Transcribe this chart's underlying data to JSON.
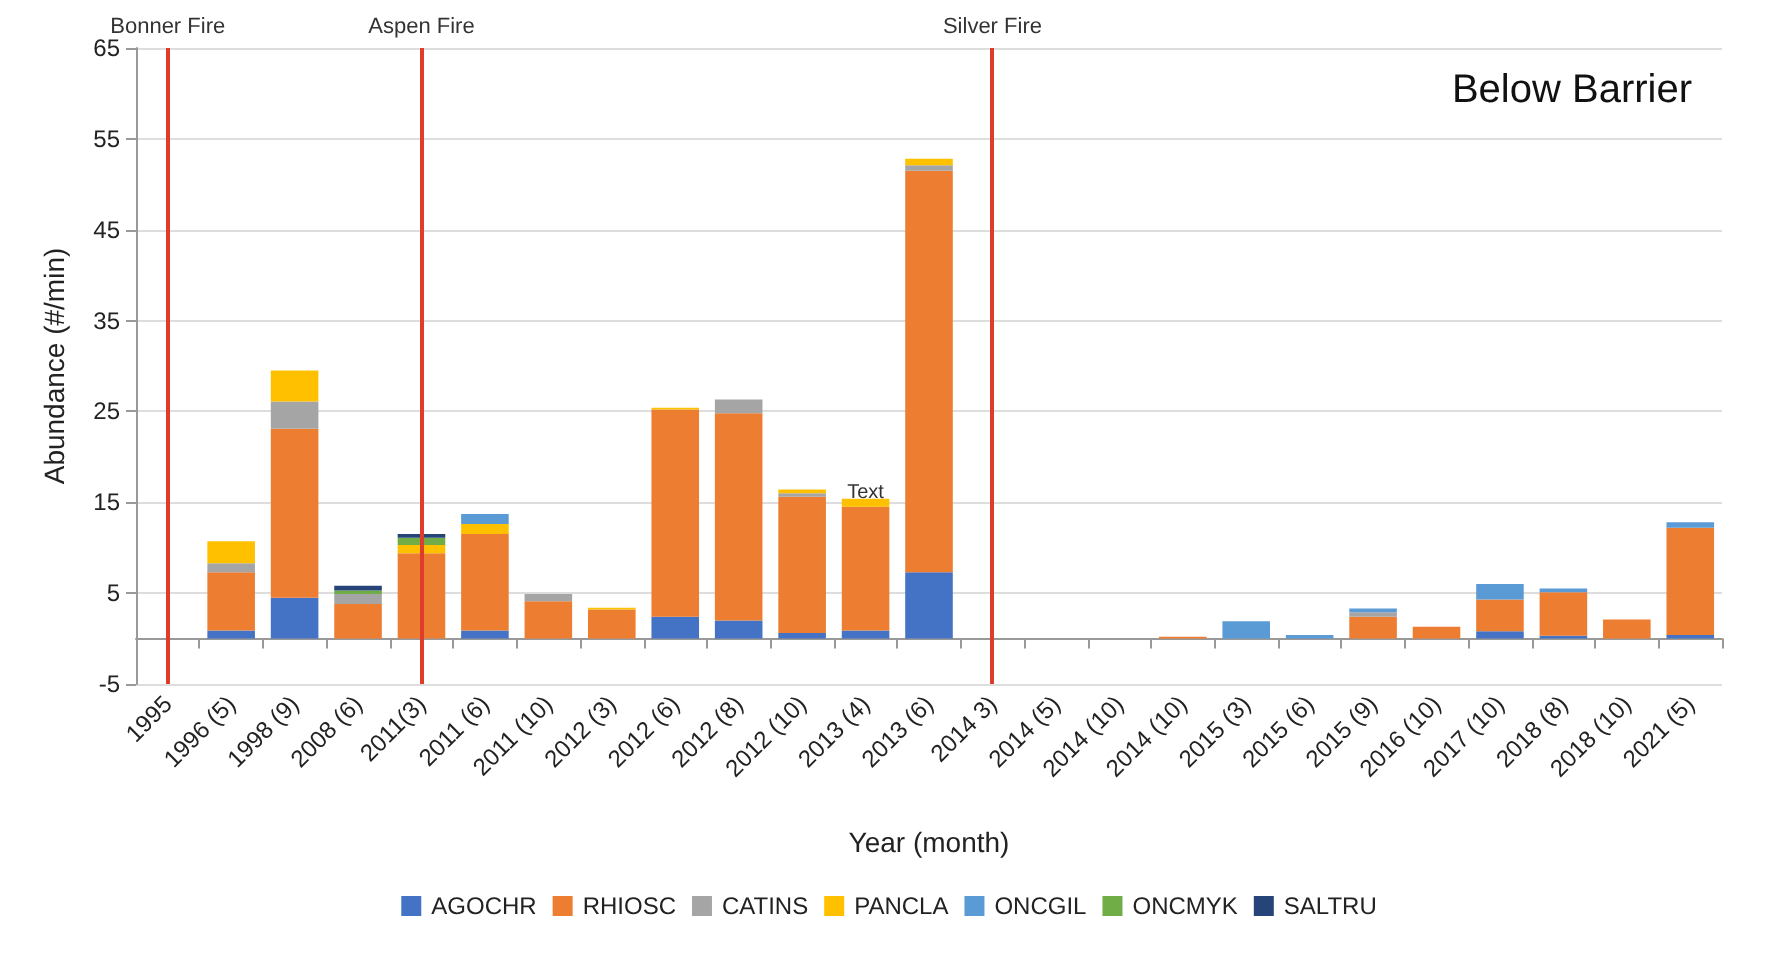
{
  "chart_data": {
    "type": "bar",
    "title": "Below Barrier",
    "xlabel": "Year (month)",
    "ylabel": "Abundance (#/min)",
    "stacked": true,
    "grid": "y",
    "legend": "bottom",
    "categories": [
      "1995",
      "1996 (5)",
      "1998 (9)",
      "2008 (6)",
      "2011(3)",
      "2011 (6)",
      "2011 (10)",
      "2012 (3)",
      "2012 (6)",
      "2012 (8)",
      "2012 (10)",
      "2013 (4)",
      "2013 (6)",
      "2014 3)",
      "2014 (5)",
      "2014 (10)",
      "2014 (10)",
      "2015 (3)",
      "2015 (6)",
      "2015 (9)",
      "2016 (10)",
      "2017 (10)",
      "2018 (8)",
      "2018 (10)",
      "2021 (5)"
    ],
    "series": [
      {
        "name": "AGOCHR",
        "color": "#4472c4",
        "values": [
          null,
          0.9,
          4.5,
          null,
          null,
          0.9,
          null,
          null,
          2.4,
          2.0,
          0.6,
          0.9,
          7.3,
          null,
          null,
          null,
          null,
          null,
          null,
          null,
          null,
          0.8,
          0.3,
          null,
          0.4
        ]
      },
      {
        "name": "RHIOSC",
        "color": "#ed7d31",
        "values": [
          null,
          6.4,
          18.6,
          3.8,
          9.4,
          10.6,
          4.1,
          3.2,
          22.8,
          22.8,
          15.0,
          13.6,
          44.2,
          null,
          null,
          null,
          0.2,
          null,
          null,
          2.4,
          1.3,
          3.5,
          4.8,
          2.1,
          11.8
        ]
      },
      {
        "name": "CATINS",
        "color": "#a5a5a5",
        "values": [
          null,
          1.0,
          3.0,
          1.1,
          null,
          null,
          0.8,
          null,
          null,
          1.5,
          0.4,
          null,
          0.6,
          null,
          null,
          null,
          null,
          null,
          null,
          0.5,
          null,
          null,
          null,
          null,
          null
        ]
      },
      {
        "name": "PANCLA",
        "color": "#ffc000",
        "values": [
          null,
          2.4,
          3.4,
          null,
          0.9,
          1.1,
          null,
          0.2,
          0.2,
          null,
          0.4,
          0.9,
          0.7,
          null,
          null,
          null,
          null,
          null,
          null,
          null,
          null,
          null,
          null,
          null,
          null
        ]
      },
      {
        "name": "ONCGIL",
        "color": "#5b9bd5",
        "values": [
          null,
          null,
          null,
          null,
          null,
          1.1,
          null,
          null,
          null,
          null,
          null,
          null,
          null,
          null,
          null,
          null,
          null,
          1.9,
          0.4,
          0.4,
          null,
          1.7,
          0.4,
          null,
          0.6
        ]
      },
      {
        "name": "ONCMYK",
        "color": "#70ad47",
        "values": [
          null,
          null,
          null,
          0.4,
          0.8,
          null,
          null,
          null,
          null,
          null,
          null,
          null,
          null,
          null,
          null,
          null,
          null,
          null,
          null,
          null,
          null,
          null,
          null,
          null,
          null
        ]
      },
      {
        "name": "SALTRU",
        "color": "#264478",
        "values": [
          null,
          null,
          null,
          0.5,
          0.4,
          null,
          null,
          null,
          null,
          null,
          null,
          null,
          null,
          null,
          null,
          null,
          null,
          null,
          null,
          null,
          null,
          null,
          null,
          null,
          null
        ]
      }
    ],
    "ylim": [
      -5,
      65
    ],
    "yticks": [
      -5,
      5,
      15,
      25,
      35,
      45,
      55,
      65
    ],
    "ref_lines": [
      {
        "axis": "x",
        "value": "1995",
        "label": "Bonner Fire",
        "color": "#e03c2c"
      },
      {
        "axis": "x",
        "value": "2011(3)",
        "label": "Aspen Fire",
        "color": "#e03c2c"
      },
      {
        "axis": "x",
        "value": "2014 3)",
        "label": "Silver Fire",
        "color": "#e03c2c"
      }
    ],
    "annotations": [
      {
        "text": "Text",
        "x": "2013 (4)",
        "y": 16
      }
    ]
  }
}
